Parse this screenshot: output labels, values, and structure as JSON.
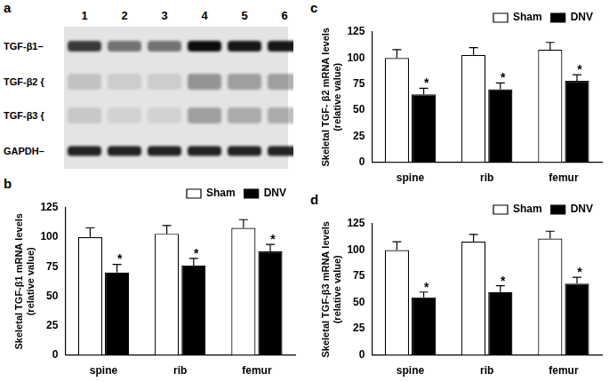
{
  "blot": {
    "panel_label": "a",
    "lanes": [
      "1",
      "2",
      "3",
      "4",
      "5",
      "6"
    ],
    "rows": [
      {
        "label": "TGF-β1–",
        "band_intensity": [
          0.75,
          0.5,
          0.5,
          0.95,
          0.9,
          0.9
        ]
      },
      {
        "label": "TGF-β2 {",
        "band_intensity": [
          0.15,
          0.1,
          0.1,
          0.35,
          0.3,
          0.3
        ]
      },
      {
        "label": "TGF-β3 {",
        "band_intensity": [
          0.12,
          0.08,
          0.08,
          0.3,
          0.25,
          0.25
        ]
      },
      {
        "label": "GAPDH–",
        "band_intensity": [
          0.85,
          0.85,
          0.85,
          0.85,
          0.85,
          0.85
        ]
      }
    ]
  },
  "chart_data": [
    {
      "panel_label": "b",
      "type": "bar",
      "y_label": [
        "Skeletal TGF-β1 mRNA levels",
        "(relative value)"
      ],
      "categories": [
        "spine",
        "rib",
        "femur"
      ],
      "series": [
        {
          "name": "Sham",
          "color": "#ffffff",
          "values": [
            100,
            103,
            108
          ],
          "error": [
            8,
            7,
            7
          ]
        },
        {
          "name": "DNV",
          "color": "#000000",
          "values": [
            70,
            76,
            88
          ],
          "error": [
            7,
            6,
            6
          ],
          "significance": [
            "*",
            "*",
            "*"
          ]
        }
      ],
      "ylim": [
        0,
        125
      ],
      "yticks": [
        0,
        25,
        50,
        75,
        100,
        125
      ],
      "grid": false,
      "legend": "upper right"
    },
    {
      "panel_label": "c",
      "type": "bar",
      "y_label": [
        "Skeletal TGF- β2 mRNA levels",
        "(relative value)"
      ],
      "categories": [
        "spine",
        "rib",
        "femur"
      ],
      "series": [
        {
          "name": "Sham",
          "color": "#ffffff",
          "values": [
            100,
            103,
            108
          ],
          "error": [
            8,
            7,
            7
          ]
        },
        {
          "name": "DNV",
          "color": "#000000",
          "values": [
            65,
            70,
            78
          ],
          "error": [
            6,
            6,
            6
          ],
          "significance": [
            "*",
            "*",
            "*"
          ]
        }
      ],
      "ylim": [
        0,
        125
      ],
      "yticks": [
        0,
        25,
        50,
        75,
        100,
        125
      ],
      "grid": false,
      "legend": "upper right"
    },
    {
      "panel_label": "d",
      "type": "bar",
      "y_label": [
        "Skeletal TGF-β3 mRNA levels",
        "(relative value)"
      ],
      "categories": [
        "spine",
        "rib",
        "femur"
      ],
      "series": [
        {
          "name": "Sham",
          "color": "#ffffff",
          "values": [
            100,
            108,
            111
          ],
          "error": [
            8,
            7,
            7
          ]
        },
        {
          "name": "DNV",
          "color": "#000000",
          "values": [
            55,
            60,
            68
          ],
          "error": [
            5,
            6,
            6
          ],
          "significance": [
            "*",
            "*",
            "*"
          ]
        }
      ],
      "ylim": [
        0,
        125
      ],
      "yticks": [
        0,
        25,
        50,
        75,
        100,
        125
      ],
      "grid": false,
      "legend": "upper right"
    }
  ]
}
